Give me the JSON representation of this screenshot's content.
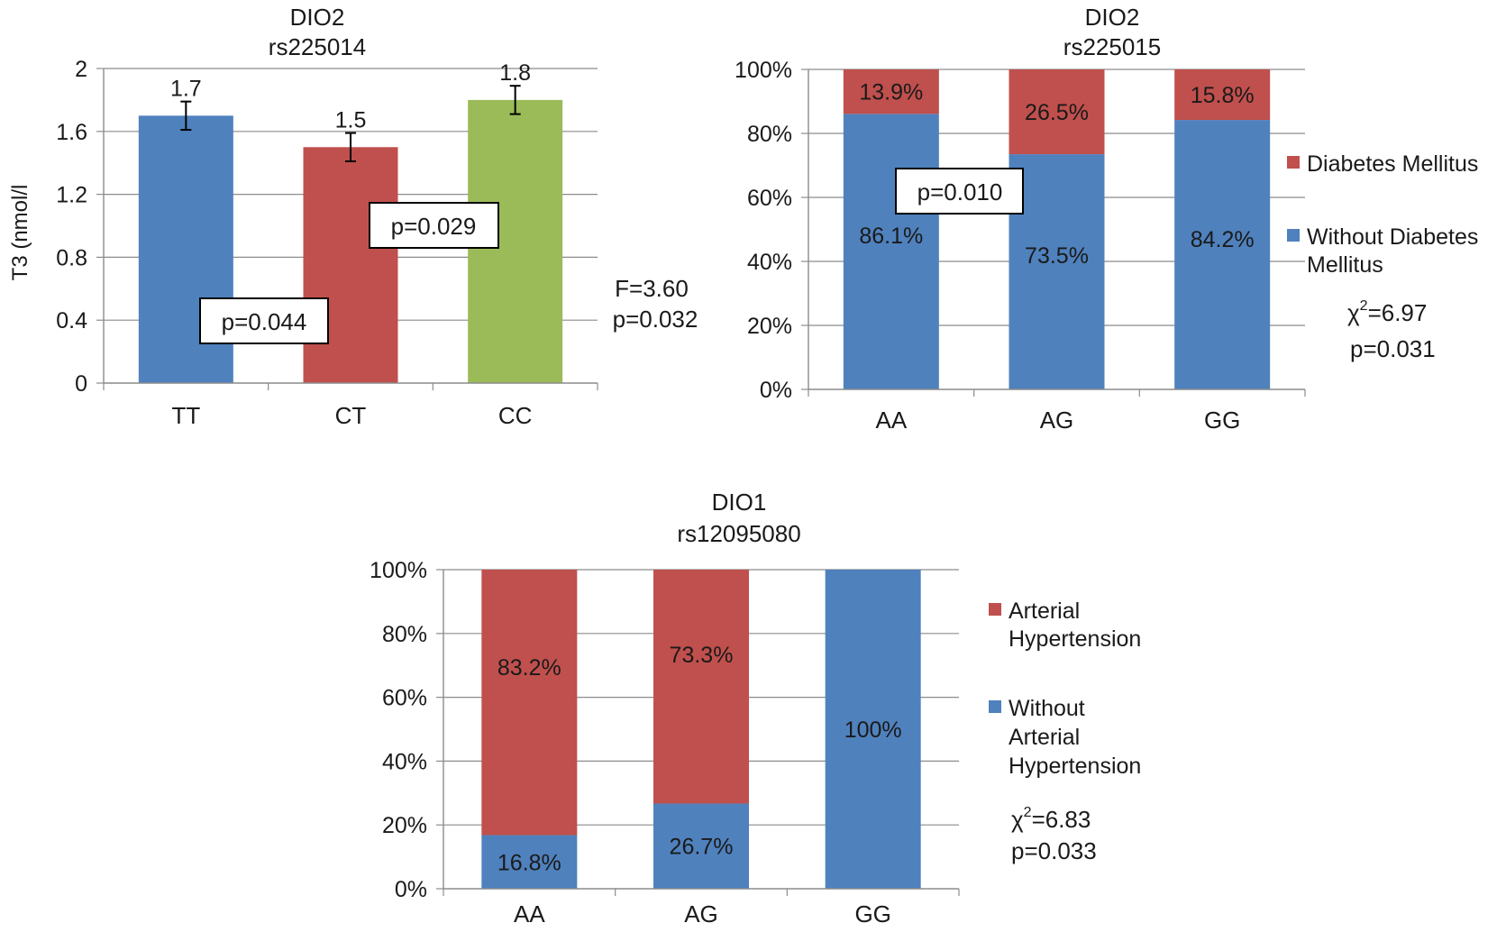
{
  "chart_data": [
    {
      "id": "dio2_rs225014",
      "type": "bar",
      "title": "DIO2",
      "subtitle": "rs225014",
      "ylabel": "T3 (nmol/l",
      "xlabel": "",
      "ylim": [
        0,
        2
      ],
      "yticks": [
        "0",
        "0.4",
        "0.8",
        "1.2",
        "1.6",
        "2"
      ],
      "categories": [
        "TT",
        "CT",
        "CC"
      ],
      "values": [
        1.7,
        1.5,
        1.8
      ],
      "value_labels": [
        "1.7",
        "1.5",
        "1.8"
      ],
      "errors": [
        0.09,
        0.09,
        0.09
      ],
      "colors": [
        "#4f81bd",
        "#c0504d",
        "#9bbb59"
      ],
      "annotations": [
        "p=0.044",
        "p=0.029"
      ],
      "stats": [
        "F=3.60",
        "p=0.032"
      ]
    },
    {
      "id": "dio2_rs225015",
      "type": "bar",
      "stacked_percent": true,
      "title": "DIO2",
      "subtitle": "rs225015",
      "yticks": [
        "0%",
        "20%",
        "40%",
        "60%",
        "80%",
        "100%"
      ],
      "categories": [
        "AA",
        "AG",
        "GG"
      ],
      "series": [
        {
          "name": "Without Diabetes Mellitus",
          "legend_lines": [
            "Without Diabetes",
            "Mellitus"
          ],
          "color": "#4f81bd",
          "values": [
            86.1,
            73.5,
            84.2
          ],
          "labels": [
            "86.1%",
            "73.5%",
            "84.2%"
          ]
        },
        {
          "name": "Diabetes Mellitus",
          "legend_lines": [
            "Diabetes Mellitus"
          ],
          "color": "#c0504d",
          "values": [
            13.9,
            26.5,
            15.8
          ],
          "labels": [
            "13.9%",
            "26.5%",
            "15.8%"
          ]
        }
      ],
      "annotations": [
        "p=0.010"
      ],
      "stat_chi": "χ",
      "stat_chi_sup": "2",
      "stat_chi_val": "=6.97",
      "stat_p": "p=0.031"
    },
    {
      "id": "dio1_rs12095080",
      "type": "bar",
      "stacked_percent": true,
      "title": "DIO1",
      "subtitle": "rs12095080",
      "yticks": [
        "0%",
        "20%",
        "40%",
        "60%",
        "80%",
        "100%"
      ],
      "categories": [
        "AA",
        "AG",
        "GG"
      ],
      "series": [
        {
          "name": "Without Arterial Hypertension",
          "legend_lines": [
            "Without",
            "Arterial",
            "Hypertension"
          ],
          "color": "#4f81bd",
          "values": [
            16.8,
            26.7,
            100
          ],
          "labels": [
            "16.8%",
            "26.7%",
            "100%"
          ]
        },
        {
          "name": "Arterial Hypertension",
          "legend_lines": [
            "Arterial",
            "Hypertension"
          ],
          "color": "#c0504d",
          "values": [
            83.2,
            73.3,
            0
          ],
          "labels": [
            "83.2%",
            "73.3%",
            ""
          ]
        }
      ],
      "stat_chi": "χ",
      "stat_chi_sup": "2",
      "stat_chi_val": "=6.83",
      "stat_p": "p=0.033"
    }
  ]
}
